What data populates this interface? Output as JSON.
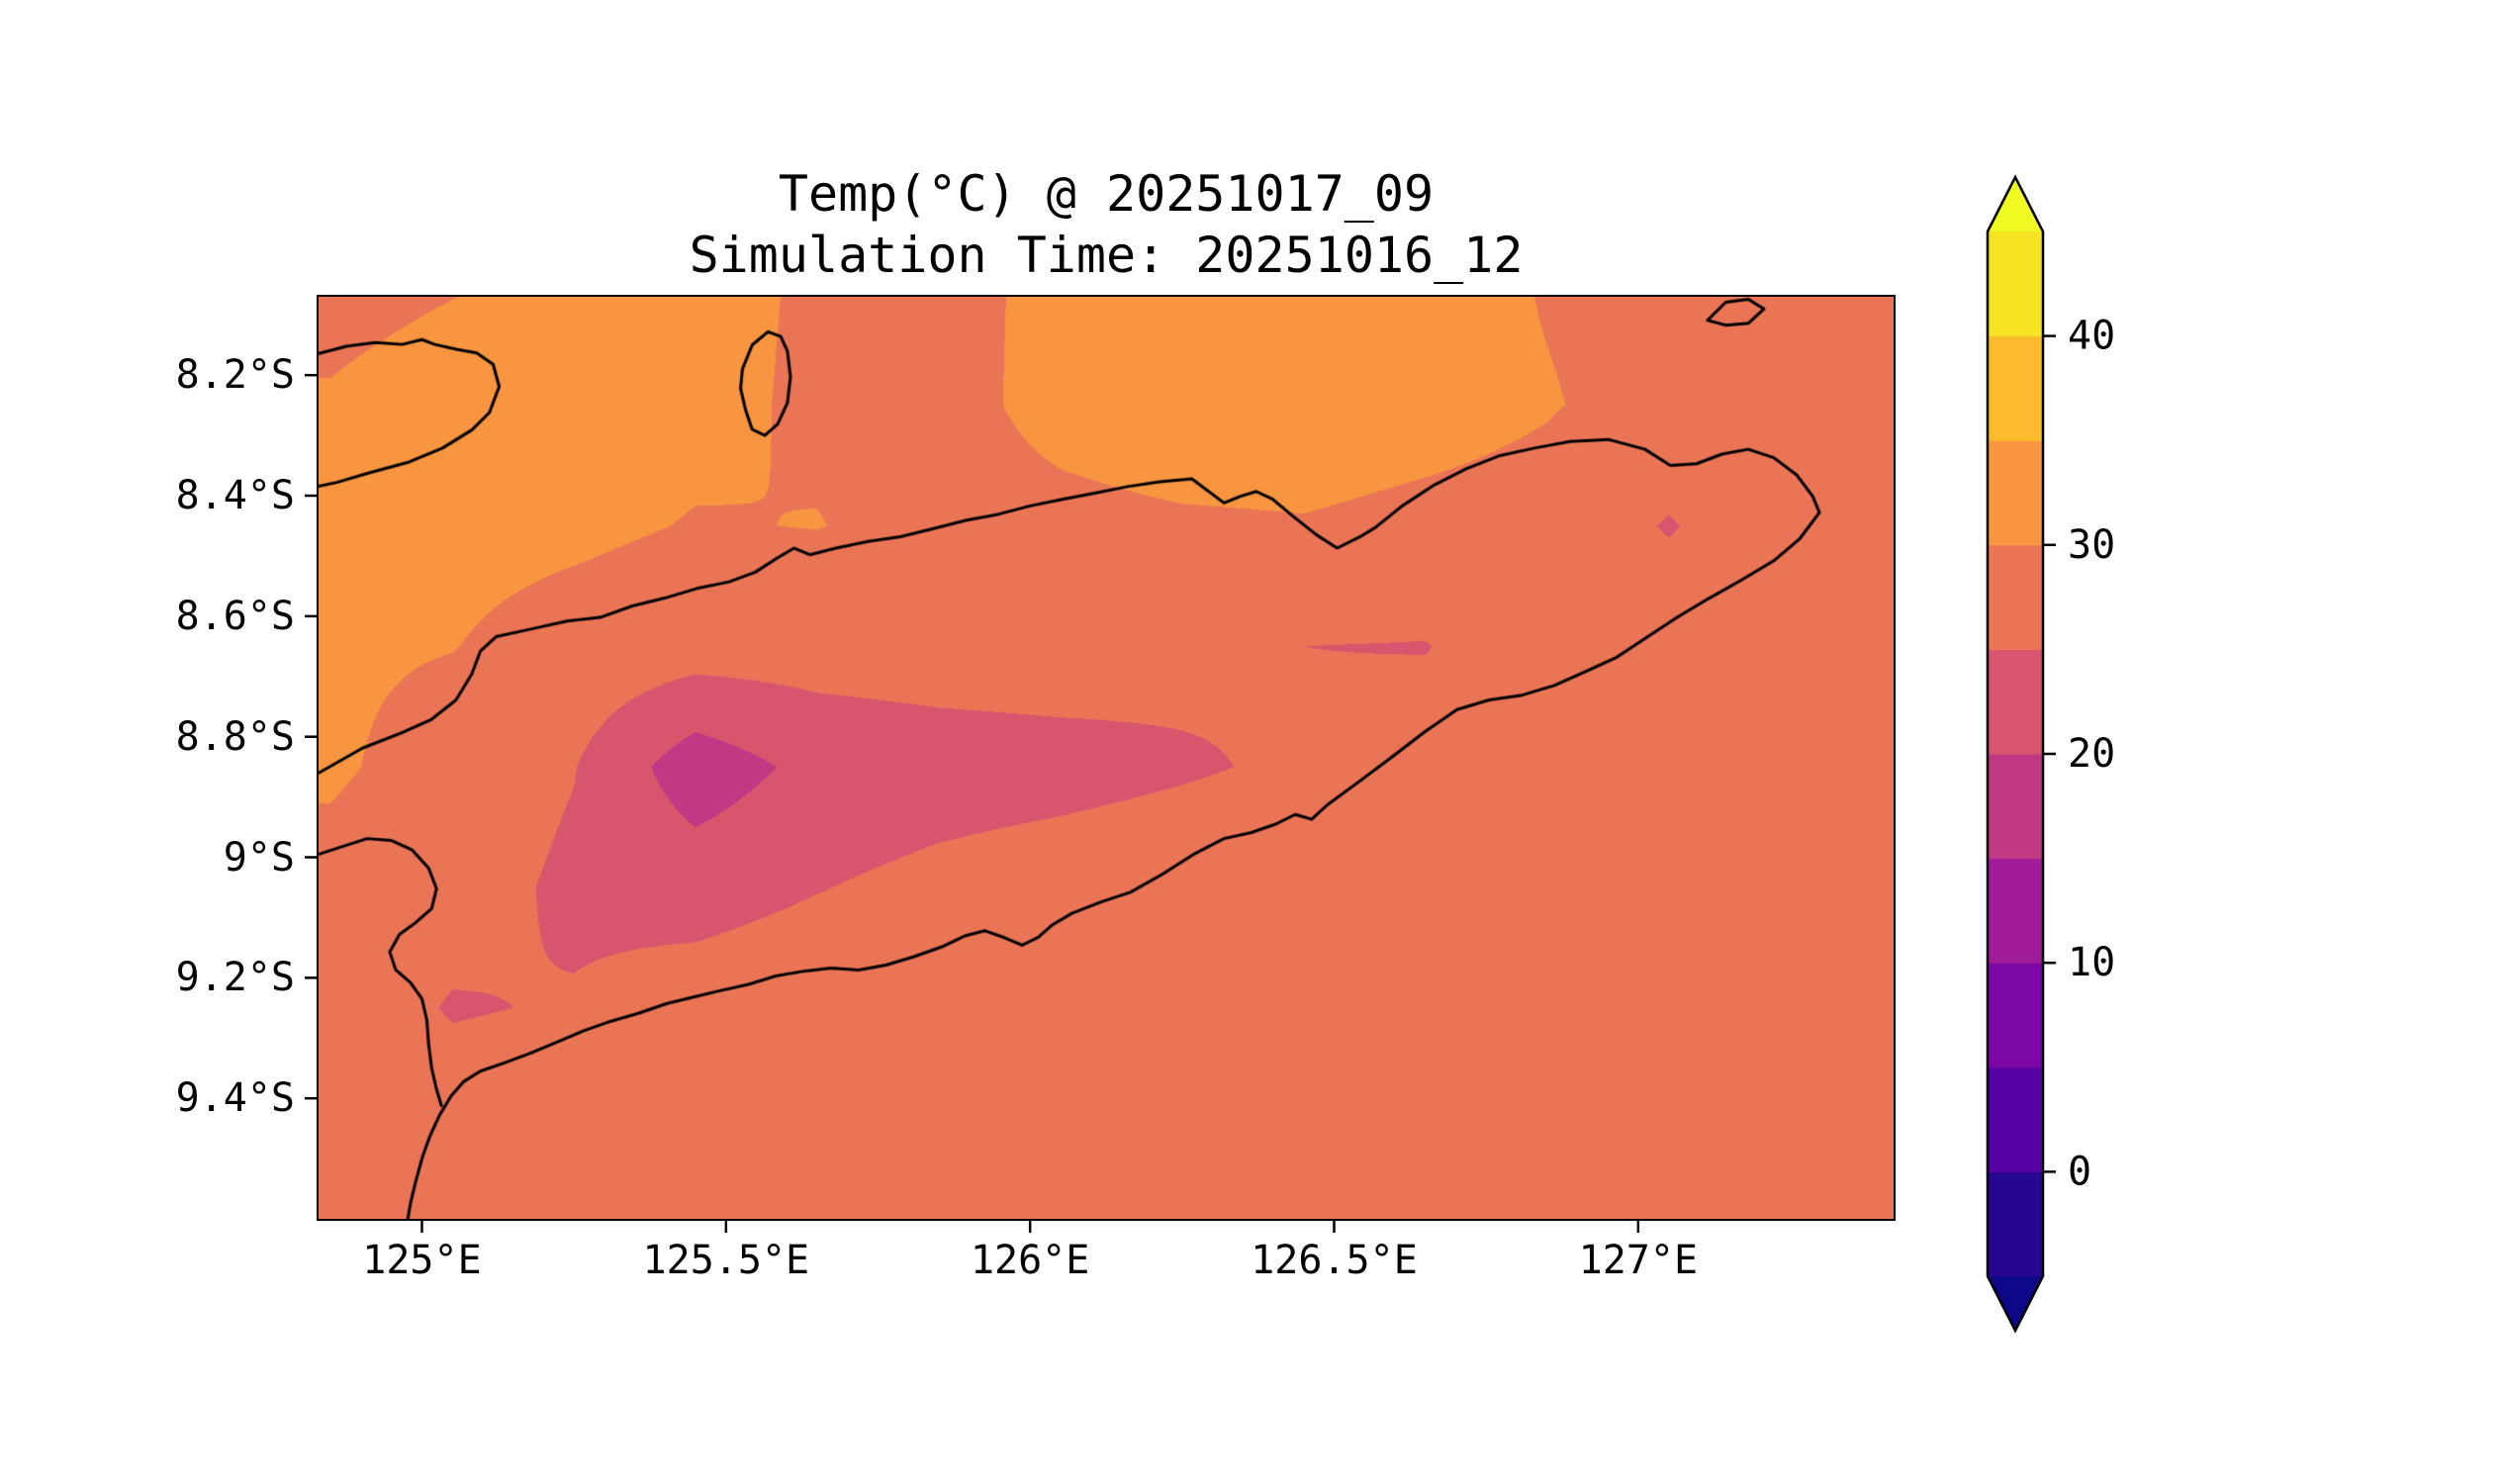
{
  "figure": {
    "title": "Temp(°C) @ 20251017_09",
    "subtitle": "Simulation Time: 20251016_12",
    "background_color": "#ffffff"
  },
  "chart_data": {
    "type": "heatmap",
    "subtype": "filled-contour-map",
    "title": "Temp(°C) @ 20251017_09",
    "subtitle": "Simulation Time: 20251016_12",
    "variable": "Temp",
    "units": "°C",
    "valid_time_label": "20251017_09",
    "simulation_time_label": "20251016_12",
    "frame_color": "#000000",
    "coastline_color": "#000000",
    "text_color": "#000000",
    "x_axis": {
      "tick_labels": [
        "125°E",
        "125.5°E",
        "126°E",
        "126.5°E",
        "127°E"
      ],
      "tick_values": [
        125.0,
        125.5,
        126.0,
        126.5,
        127.0
      ],
      "range": [
        124.83,
        127.42
      ]
    },
    "y_axis": {
      "tick_labels": [
        "8.2°S",
        "8.4°S",
        "8.6°S",
        "8.8°S",
        "9°S",
        "9.2°S",
        "9.4°S"
      ],
      "tick_values": [
        8.2,
        8.4,
        8.6,
        8.8,
        9.0,
        9.2,
        9.4
      ],
      "range": [
        8.07,
        9.6
      ],
      "direction": "south_down"
    },
    "colorbar": {
      "min": -5,
      "max": 45,
      "level_step": 5,
      "tick_labels": [
        "0",
        "10",
        "20",
        "30",
        "40"
      ],
      "tick_values": [
        0,
        10,
        20,
        30,
        40
      ],
      "extend": "both",
      "colormap": "plasma"
    },
    "colormap_stops": [
      [
        0.0,
        "#0d0887"
      ],
      [
        0.1,
        "#41049d"
      ],
      [
        0.2,
        "#6a00a8"
      ],
      [
        0.3,
        "#8f0da4"
      ],
      [
        0.4,
        "#b12a90"
      ],
      [
        0.5,
        "#cc4778"
      ],
      [
        0.6,
        "#e16462"
      ],
      [
        0.7,
        "#f2844b"
      ],
      [
        0.8,
        "#fca636"
      ],
      [
        0.9,
        "#fcce25"
      ],
      [
        1.0,
        "#f0f921"
      ]
    ],
    "grid": {
      "lons": [
        124.85,
        125.05,
        125.25,
        125.45,
        125.65,
        125.85,
        126.05,
        126.25,
        126.45,
        126.65,
        126.85,
        127.05,
        127.25,
        127.45
      ],
      "lats_south": [
        8.05,
        8.25,
        8.45,
        8.65,
        8.85,
        9.05,
        9.25,
        9.45,
        9.65
      ],
      "temps_c": [
        [
          29.0,
          29.8,
          30.8,
          31.2,
          29.5,
          29.0,
          30.8,
          31.6,
          31.8,
          31.4,
          29.8,
          28.9,
          28.8,
          28.8
        ],
        [
          30.3,
          31.4,
          31.8,
          31.0,
          29.4,
          29.0,
          30.9,
          31.8,
          31.8,
          31.2,
          30.2,
          28.9,
          28.8,
          28.8
        ],
        [
          30.8,
          31.2,
          30.8,
          29.8,
          30.1,
          28.9,
          29.2,
          29.6,
          29.8,
          29.2,
          28.8,
          24.6,
          28.8,
          28.8
        ],
        [
          30.6,
          30.1,
          28.4,
          27.4,
          27.2,
          27.5,
          27.6,
          26.4,
          25.0,
          24.8,
          28.2,
          28.7,
          28.8,
          28.8
        ],
        [
          30.6,
          28.2,
          25.2,
          17.0,
          21.5,
          22.6,
          23.2,
          24.4,
          25.8,
          27.6,
          28.6,
          28.8,
          28.8,
          28.8
        ],
        [
          28.6,
          27.2,
          24.0,
          23.0,
          24.8,
          26.4,
          27.6,
          28.4,
          28.8,
          28.8,
          28.8,
          28.8,
          28.8,
          28.8
        ],
        [
          28.2,
          24.6,
          25.4,
          27.4,
          28.4,
          28.8,
          28.8,
          28.8,
          28.8,
          28.8,
          28.8,
          28.8,
          28.8,
          28.8
        ],
        [
          28.6,
          27.8,
          28.4,
          28.8,
          28.8,
          28.8,
          28.8,
          28.8,
          28.8,
          28.8,
          28.8,
          28.8,
          28.8,
          28.8
        ],
        [
          28.8,
          28.8,
          28.8,
          28.8,
          28.8,
          28.8,
          28.8,
          28.8,
          28.8,
          28.8,
          28.8,
          28.8,
          28.8,
          28.8
        ]
      ]
    },
    "coastlines": [
      {
        "name": "timor-main-island",
        "closed": false,
        "points": [
          [
            124.827,
            8.862
          ],
          [
            124.902,
            8.819
          ],
          [
            124.968,
            8.793
          ],
          [
            125.016,
            8.771
          ],
          [
            125.056,
            8.739
          ],
          [
            125.082,
            8.696
          ],
          [
            125.096,
            8.658
          ],
          [
            125.122,
            8.634
          ],
          [
            125.181,
            8.621
          ],
          [
            125.239,
            8.608
          ],
          [
            125.293,
            8.602
          ],
          [
            125.346,
            8.583
          ],
          [
            125.399,
            8.57
          ],
          [
            125.452,
            8.554
          ],
          [
            125.505,
            8.543
          ],
          [
            125.548,
            8.527
          ],
          [
            125.585,
            8.503
          ],
          [
            125.612,
            8.487
          ],
          [
            125.638,
            8.498
          ],
          [
            125.681,
            8.487
          ],
          [
            125.734,
            8.476
          ],
          [
            125.787,
            8.468
          ],
          [
            125.84,
            8.455
          ],
          [
            125.894,
            8.441
          ],
          [
            125.947,
            8.431
          ],
          [
            126.0,
            8.417
          ],
          [
            126.053,
            8.406
          ],
          [
            126.106,
            8.396
          ],
          [
            126.16,
            8.385
          ],
          [
            126.213,
            8.377
          ],
          [
            126.266,
            8.372
          ],
          [
            126.319,
            8.412
          ],
          [
            126.346,
            8.401
          ],
          [
            126.372,
            8.393
          ],
          [
            126.399,
            8.406
          ],
          [
            126.431,
            8.433
          ],
          [
            126.471,
            8.465
          ],
          [
            126.505,
            8.487
          ],
          [
            126.543,
            8.468
          ],
          [
            126.569,
            8.452
          ],
          [
            126.612,
            8.417
          ],
          [
            126.665,
            8.382
          ],
          [
            126.718,
            8.355
          ],
          [
            126.771,
            8.334
          ],
          [
            126.83,
            8.321
          ],
          [
            126.888,
            8.31
          ],
          [
            126.952,
            8.307
          ],
          [
            127.011,
            8.323
          ],
          [
            127.053,
            8.35
          ],
          [
            127.096,
            8.347
          ],
          [
            127.138,
            8.331
          ],
          [
            127.181,
            8.323
          ],
          [
            127.223,
            8.337
          ],
          [
            127.261,
            8.366
          ],
          [
            127.287,
            8.401
          ],
          [
            127.298,
            8.428
          ],
          [
            127.266,
            8.471
          ],
          [
            127.223,
            8.508
          ],
          [
            127.17,
            8.54
          ],
          [
            127.117,
            8.57
          ],
          [
            127.064,
            8.602
          ],
          [
            127.011,
            8.637
          ],
          [
            126.963,
            8.669
          ],
          [
            126.915,
            8.691
          ],
          [
            126.862,
            8.715
          ],
          [
            126.809,
            8.731
          ],
          [
            126.755,
            8.739
          ],
          [
            126.702,
            8.755
          ],
          [
            126.649,
            8.792
          ],
          [
            126.596,
            8.833
          ],
          [
            126.543,
            8.873
          ],
          [
            126.489,
            8.913
          ],
          [
            126.463,
            8.937
          ],
          [
            126.436,
            8.929
          ],
          [
            126.404,
            8.945
          ],
          [
            126.364,
            8.959
          ],
          [
            126.319,
            8.969
          ],
          [
            126.271,
            8.994
          ],
          [
            126.218,
            9.028
          ],
          [
            126.165,
            9.058
          ],
          [
            126.117,
            9.074
          ],
          [
            126.069,
            9.093
          ],
          [
            126.037,
            9.112
          ],
          [
            126.013,
            9.133
          ],
          [
            125.987,
            9.146
          ],
          [
            125.957,
            9.133
          ],
          [
            125.926,
            9.122
          ],
          [
            125.894,
            9.13
          ],
          [
            125.854,
            9.149
          ],
          [
            125.809,
            9.165
          ],
          [
            125.763,
            9.179
          ],
          [
            125.718,
            9.187
          ],
          [
            125.673,
            9.184
          ],
          [
            125.628,
            9.189
          ],
          [
            125.582,
            9.197
          ],
          [
            125.537,
            9.211
          ],
          [
            125.492,
            9.221
          ],
          [
            125.447,
            9.232
          ],
          [
            125.402,
            9.243
          ],
          [
            125.356,
            9.259
          ],
          [
            125.311,
            9.272
          ],
          [
            125.266,
            9.288
          ],
          [
            125.221,
            9.307
          ],
          [
            125.176,
            9.326
          ],
          [
            125.133,
            9.342
          ],
          [
            125.096,
            9.355
          ],
          [
            125.069,
            9.372
          ],
          [
            125.048,
            9.396
          ],
          [
            125.029,
            9.428
          ],
          [
            125.013,
            9.463
          ],
          [
            125.0,
            9.5
          ],
          [
            124.989,
            9.541
          ],
          [
            124.981,
            9.575
          ],
          [
            124.976,
            9.605
          ]
        ]
      },
      {
        "name": "west-coast-inlet",
        "closed": false,
        "points": [
          [
            124.827,
            8.996
          ],
          [
            124.867,
            8.983
          ],
          [
            124.91,
            8.969
          ],
          [
            124.949,
            8.972
          ],
          [
            124.984,
            8.988
          ],
          [
            125.011,
            9.018
          ],
          [
            125.024,
            9.052
          ],
          [
            125.016,
            9.085
          ],
          [
            124.989,
            9.109
          ],
          [
            124.963,
            9.128
          ],
          [
            124.947,
            9.157
          ],
          [
            124.957,
            9.187
          ],
          [
            124.981,
            9.208
          ],
          [
            125.0,
            9.235
          ],
          [
            125.008,
            9.27
          ],
          [
            125.011,
            9.31
          ],
          [
            125.016,
            9.35
          ],
          [
            125.024,
            9.385
          ],
          [
            125.032,
            9.412
          ]
        ]
      },
      {
        "name": "alor-east-end",
        "closed": false,
        "points": [
          [
            124.827,
            8.165
          ],
          [
            124.876,
            8.152
          ],
          [
            124.923,
            8.146
          ],
          [
            124.968,
            8.149
          ],
          [
            125.0,
            8.141
          ],
          [
            125.021,
            8.149
          ],
          [
            125.056,
            8.157
          ],
          [
            125.09,
            8.163
          ],
          [
            125.117,
            8.182
          ],
          [
            125.127,
            8.219
          ],
          [
            125.111,
            8.262
          ],
          [
            125.082,
            8.291
          ],
          [
            125.034,
            8.321
          ],
          [
            124.976,
            8.345
          ],
          [
            124.91,
            8.363
          ],
          [
            124.86,
            8.378
          ],
          [
            124.827,
            8.385
          ]
        ]
      },
      {
        "name": "atauro-island",
        "closed": true,
        "points": [
          [
            125.527,
            8.19
          ],
          [
            125.543,
            8.15
          ],
          [
            125.569,
            8.128
          ],
          [
            125.59,
            8.136
          ],
          [
            125.601,
            8.16
          ],
          [
            125.606,
            8.203
          ],
          [
            125.601,
            8.246
          ],
          [
            125.585,
            8.281
          ],
          [
            125.564,
            8.3
          ],
          [
            125.543,
            8.29
          ],
          [
            125.532,
            8.257
          ],
          [
            125.524,
            8.222
          ]
        ]
      },
      {
        "name": "kisar-island",
        "closed": true,
        "points": [
          [
            127.114,
            8.109
          ],
          [
            127.144,
            8.079
          ],
          [
            127.181,
            8.074
          ],
          [
            127.207,
            8.09
          ],
          [
            127.181,
            8.114
          ],
          [
            127.144,
            8.117
          ]
        ]
      }
    ]
  }
}
